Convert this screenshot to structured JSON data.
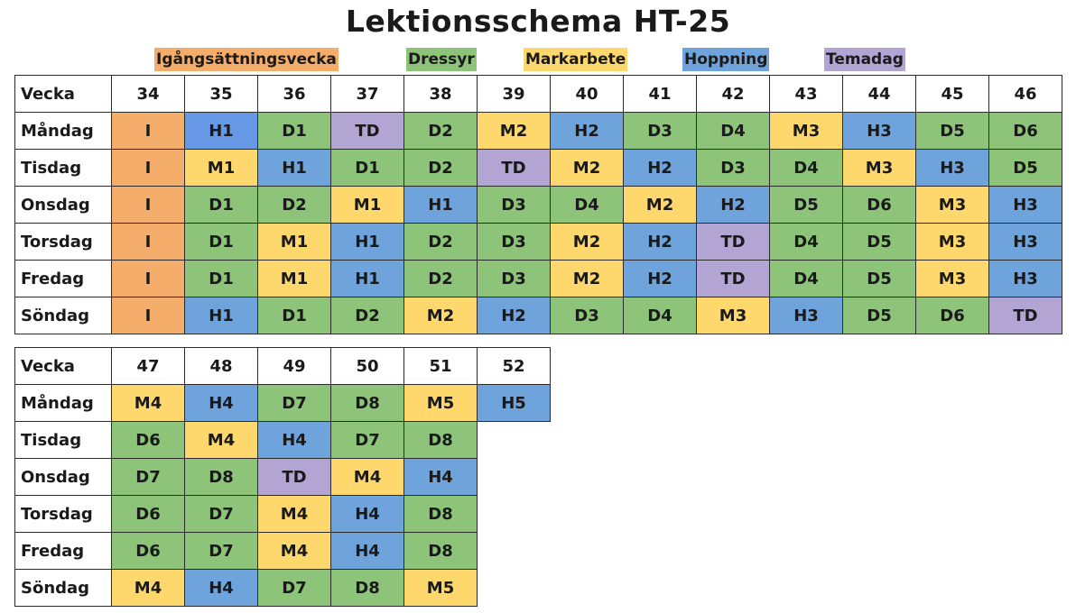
{
  "title": "Lektionsschema HT-25",
  "legend": [
    {
      "label": "Igångsättningsvecka",
      "code": "I",
      "color": "#f5ad6c"
    },
    {
      "label": "Dressyr",
      "code": "D",
      "color": "#8dc479"
    },
    {
      "label": "Markarbete",
      "code": "M",
      "color": "#fed86c"
    },
    {
      "label": "Hoppning",
      "code": "H",
      "color": "#6ea3dc"
    },
    {
      "label": "Temadag",
      "code": "T",
      "color": "#b2a5d4"
    }
  ],
  "tables": [
    {
      "header_label": "Vecka",
      "weeks": [
        "34",
        "35",
        "36",
        "37",
        "38",
        "39",
        "40",
        "41",
        "42",
        "43",
        "44",
        "45",
        "46"
      ],
      "rows": [
        {
          "day": "Måndag",
          "cells": [
            "I",
            "H1",
            "D1",
            "TD",
            "D2",
            "M2",
            "H2",
            "D3",
            "D4",
            "M3",
            "H3",
            "D5",
            "D6"
          ]
        },
        {
          "day": "Tisdag",
          "cells": [
            "I",
            "M1",
            "H1",
            "D1",
            "D2",
            "TD",
            "M2",
            "H2",
            "D3",
            "D4",
            "M3",
            "H3",
            "D5"
          ]
        },
        {
          "day": "Onsdag",
          "cells": [
            "I",
            "D1",
            "D2",
            "M1",
            "H1",
            "D3",
            "D4",
            "M2",
            "H2",
            "D5",
            "D6",
            "M3",
            "H3"
          ]
        },
        {
          "day": "Torsdag",
          "cells": [
            "I",
            "D1",
            "M1",
            "H1",
            "D2",
            "D3",
            "M2",
            "H2",
            "TD",
            "D4",
            "D5",
            "M3",
            "H3"
          ]
        },
        {
          "day": "Fredag",
          "cells": [
            "I",
            "D1",
            "M1",
            "H1",
            "D2",
            "D3",
            "M2",
            "H2",
            "TD",
            "D4",
            "D5",
            "M3",
            "H3"
          ]
        },
        {
          "day": "Söndag",
          "cells": [
            "I",
            "H1",
            "D1",
            "D2",
            "M2",
            "H2",
            "D3",
            "D4",
            "M3",
            "H3",
            "D5",
            "D6",
            "TD"
          ]
        }
      ]
    },
    {
      "header_label": "Vecka",
      "weeks": [
        "47",
        "48",
        "49",
        "50",
        "51",
        "52"
      ],
      "rows": [
        {
          "day": "Måndag",
          "cells": [
            "M4",
            "H4",
            "D7",
            "D8",
            "M5",
            "H5"
          ]
        },
        {
          "day": "Tisdag",
          "cells": [
            "D6",
            "M4",
            "H4",
            "D7",
            "D8"
          ]
        },
        {
          "day": "Onsdag",
          "cells": [
            "D7",
            "D8",
            "TD",
            "M4",
            "H4"
          ]
        },
        {
          "day": "Torsdag",
          "cells": [
            "D6",
            "D7",
            "M4",
            "H4",
            "D8"
          ]
        },
        {
          "day": "Fredag",
          "cells": [
            "D6",
            "D7",
            "M4",
            "H4",
            "D8"
          ]
        },
        {
          "day": "Söndag",
          "cells": [
            "M4",
            "H4",
            "D7",
            "D8",
            "M5"
          ]
        }
      ]
    }
  ]
}
